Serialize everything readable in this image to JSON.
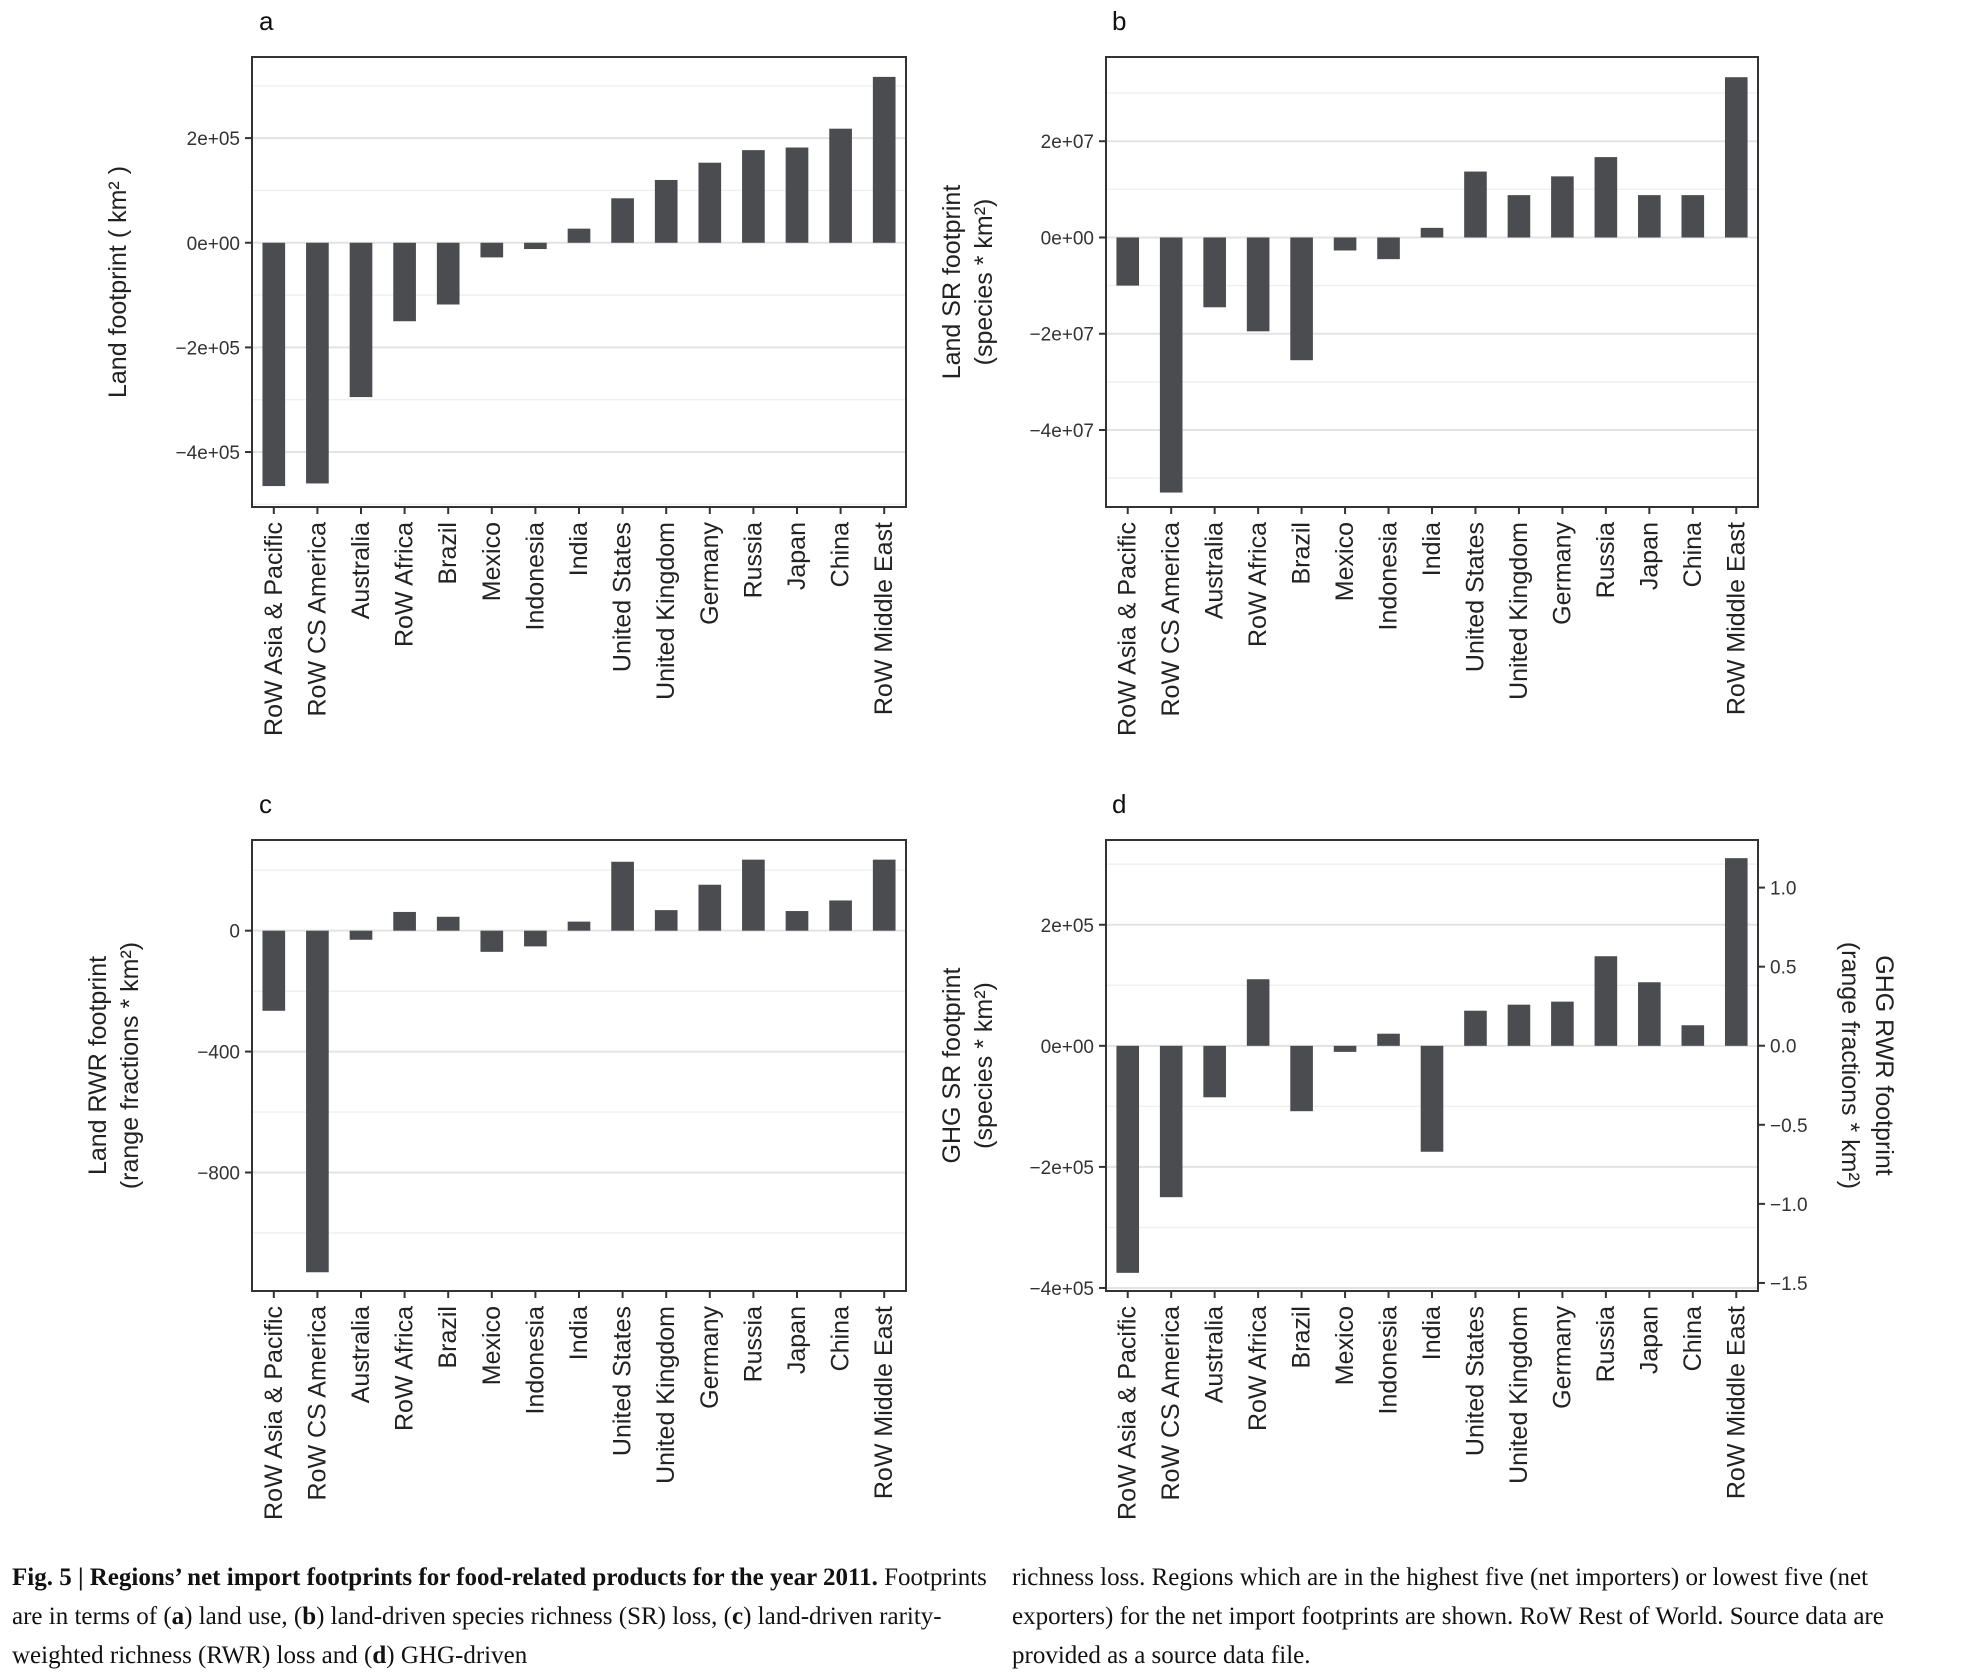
{
  "chart_data": [
    {
      "panel": "a",
      "type": "bar",
      "ylabel": "Land footprint ( km² )",
      "categories": [
        "RoW Asia & Pacific",
        "RoW CS America",
        "Australia",
        "RoW Africa",
        "Brazil",
        "Mexico",
        "Indonesia",
        "India",
        "United States",
        "United Kingdom",
        "Germany",
        "Russia",
        "Japan",
        "China",
        "RoW Middle East"
      ],
      "values": [
        -465000,
        -460000,
        -295000,
        -150000,
        -118000,
        -28000,
        -12000,
        27000,
        85000,
        120000,
        153000,
        177000,
        182000,
        218000,
        317000
      ],
      "ylim": [
        -505000,
        355000
      ],
      "yticks": [
        -400000,
        -200000,
        0,
        200000
      ],
      "yticklabels": [
        "−4e+05",
        "−2e+05",
        "0e+00",
        "2e+05"
      ],
      "grid": true
    },
    {
      "panel": "b",
      "type": "bar",
      "ylabel": "Land SR footprint",
      "ylabel2": "(species * km²)",
      "categories": [
        "RoW Asia & Pacific",
        "RoW CS America",
        "Australia",
        "RoW Africa",
        "Brazil",
        "Mexico",
        "Indonesia",
        "India",
        "United States",
        "United Kingdom",
        "Germany",
        "Russia",
        "Japan",
        "China",
        "RoW Middle East"
      ],
      "values": [
        -10000000,
        -53000000,
        -14500000,
        -19500000,
        -25500000,
        -2700000,
        -4500000,
        2000000,
        13700000,
        8800000,
        12700000,
        16700000,
        8800000,
        8800000,
        33300000
      ],
      "ylim": [
        -56000000,
        37500000
      ],
      "yticks": [
        -40000000,
        -20000000,
        0,
        20000000
      ],
      "yticklabels": [
        "−4e+07",
        "−2e+07",
        "0e+00",
        "2e+07"
      ],
      "grid": true
    },
    {
      "panel": "c",
      "type": "bar",
      "ylabel": "Land RWR footprint",
      "ylabel2": "(range fractions * km²)",
      "categories": [
        "RoW Asia & Pacific",
        "RoW CS America",
        "Australia",
        "RoW Africa",
        "Brazil",
        "Mexico",
        "Indonesia",
        "India",
        "United States",
        "United Kingdom",
        "Germany",
        "Russia",
        "Japan",
        "China",
        "RoW Middle East"
      ],
      "values": [
        -265,
        -1130,
        -30,
        62,
        46,
        -70,
        -52,
        30,
        228,
        68,
        152,
        235,
        65,
        100,
        235
      ],
      "ylim": [
        -1192,
        300
      ],
      "yticks": [
        -800,
        -400,
        0
      ],
      "yticklabels": [
        "−800",
        "−400",
        "0"
      ],
      "grid": true
    },
    {
      "panel": "d",
      "type": "bar",
      "ylabel": "GHG SR footprint",
      "ylabel2": "(species * km²)",
      "y2label": "GHG RWR footprint",
      "y2label2": "(range fractions * km²)",
      "categories": [
        "RoW Asia & Pacific",
        "RoW CS America",
        "Australia",
        "RoW Africa",
        "Brazil",
        "Mexico",
        "Indonesia",
        "India",
        "United States",
        "United Kingdom",
        "Germany",
        "Russia",
        "Japan",
        "China",
        "RoW Middle East"
      ],
      "values": [
        -375000,
        -250000,
        -85000,
        110000,
        -108000,
        -10000,
        20000,
        -175000,
        58000,
        68000,
        73000,
        148000,
        105000,
        34000,
        310000
      ],
      "ylim": [
        -405000,
        340000
      ],
      "yticks": [
        -400000,
        -200000,
        0,
        200000
      ],
      "yticklabels": [
        "−4e+05",
        "−2e+05",
        "0e+00",
        "2e+05"
      ],
      "y2lim": [
        -1.551,
        1.301
      ],
      "y2ticks": [
        -1.5,
        -1.0,
        -0.5,
        0.0,
        0.5,
        1.0
      ],
      "y2ticklabels": [
        "−1.5",
        "−1.0",
        "−0.5",
        "0.0",
        "0.5",
        "1.0"
      ],
      "grid": true
    }
  ],
  "caption": {
    "fig_label": "Fig. 5 | Regions’ net import footprints for food-related products for the year 2011.",
    "col1_parts": [
      " Footprints are in terms of (",
      "a",
      ") land use, (",
      "b",
      ") land-driven species richness (SR) loss, (",
      "c",
      ") land-driven rarity-weighted richness (RWR) loss and (",
      "d",
      ") GHG-driven"
    ],
    "col2": "richness loss. Regions which are in the highest five (net importers) or lowest five (net exporters) for the net import footprints are shown. RoW Rest of World. Source data are provided as a source data file."
  }
}
